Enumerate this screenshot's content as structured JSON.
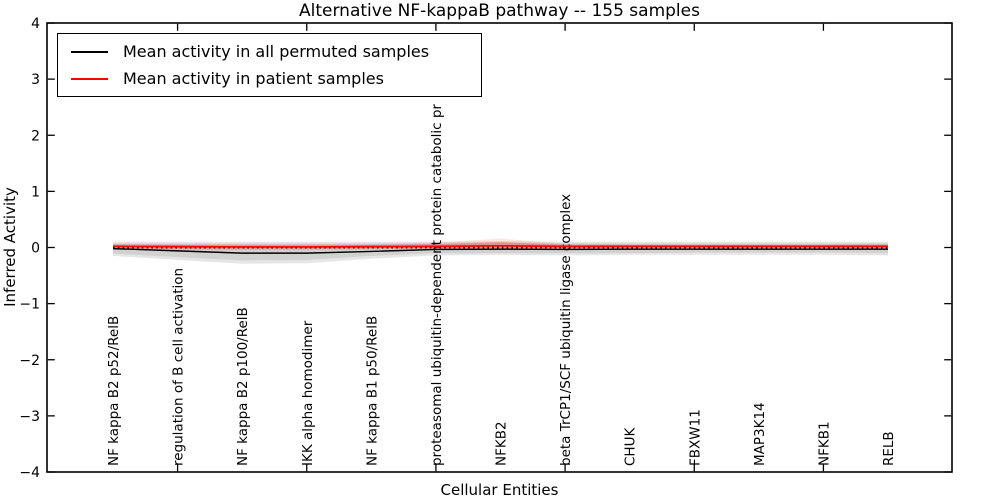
{
  "chart_data": {
    "type": "line",
    "title": "Alternative NF-kappaB pathway -- 155 samples",
    "xlabel": "Cellular Entities",
    "ylabel": "Inferred Activity",
    "ylim": [
      -4,
      4
    ],
    "yticks": [
      4,
      3,
      2,
      1,
      0,
      -1,
      -2,
      -3,
      -4
    ],
    "ytick_labels": [
      "4",
      "3",
      "2",
      "1",
      "0",
      "−1",
      "−2",
      "−3",
      "−4"
    ],
    "grid": false,
    "background_color": "#ffffff",
    "axis_color": "#000000",
    "categories": [
      "NF kappa B2 p52/RelB",
      "regulation of B cell activation",
      "NF kappa B2 p100/RelB",
      "IKK alpha homodimer",
      "NF kappa B1 p50/RelB",
      "proteasomal ubiquitin-dependent protein catabolic pr",
      "NFKB2",
      "beta TrCP1/SCF ubiquitin ligase complex",
      "CHUK",
      "FBXW11",
      "MAP3K14",
      "NFKB1",
      "RELB"
    ],
    "series": [
      {
        "name": "Mean activity in all permuted samples",
        "color": "#000000",
        "width": 1.4,
        "values": [
          -0.02,
          -0.06,
          -0.1,
          -0.1,
          -0.07,
          -0.035,
          -0.03,
          -0.035,
          -0.03,
          -0.03,
          -0.03,
          -0.03,
          -0.03
        ]
      },
      {
        "name": "Mean activity in patient samples",
        "color": "#ff0000",
        "width": 1.7,
        "values": [
          0.02,
          0.015,
          0.01,
          0.01,
          0.015,
          0.02,
          0.03,
          0.02,
          0.02,
          0.02,
          0.02,
          0.02,
          0.02
        ]
      }
    ],
    "bands": [
      {
        "name": "permuted-spread-outer",
        "color": "#999999",
        "opacity": 0.25,
        "upper": [
          0.1,
          0.1,
          0.1,
          0.1,
          0.1,
          0.1,
          0.11,
          0.1,
          0.1,
          0.1,
          0.1,
          0.1,
          0.1
        ],
        "lower": [
          -0.15,
          -0.22,
          -0.29,
          -0.28,
          -0.2,
          -0.14,
          -0.13,
          -0.14,
          -0.13,
          -0.13,
          -0.13,
          -0.13,
          -0.14
        ]
      },
      {
        "name": "permuted-spread-inner",
        "color": "#999999",
        "opacity": 0.25,
        "upper": [
          0.07,
          0.07,
          0.07,
          0.07,
          0.07,
          0.07,
          0.08,
          0.07,
          0.07,
          0.07,
          0.07,
          0.07,
          0.07
        ],
        "lower": [
          -0.11,
          -0.17,
          -0.23,
          -0.22,
          -0.15,
          -0.1,
          -0.1,
          -0.1,
          -0.1,
          -0.09,
          -0.09,
          -0.09,
          -0.1
        ]
      },
      {
        "name": "patient-spread-outer",
        "color": "#ff0000",
        "opacity": 0.1,
        "upper": [
          0.07,
          0.065,
          0.06,
          0.06,
          0.065,
          0.09,
          0.16,
          0.07,
          0.065,
          0.065,
          0.065,
          0.065,
          0.07
        ],
        "lower": [
          -0.04,
          -0.05,
          -0.05,
          -0.05,
          -0.04,
          -0.04,
          -0.05,
          -0.04,
          -0.03,
          -0.03,
          -0.03,
          -0.03,
          -0.04
        ]
      },
      {
        "name": "patient-spread-inner",
        "color": "#ff0000",
        "opacity": 0.22,
        "upper": [
          0.05,
          0.045,
          0.04,
          0.04,
          0.045,
          0.06,
          0.1,
          0.05,
          0.045,
          0.045,
          0.045,
          0.045,
          0.05
        ],
        "lower": [
          -0.02,
          -0.03,
          -0.03,
          -0.03,
          -0.02,
          -0.02,
          -0.03,
          -0.02,
          -0.015,
          -0.015,
          -0.015,
          -0.015,
          -0.02
        ]
      }
    ],
    "zero_line": {
      "value": 0,
      "style": "dotted",
      "color": "#000000"
    },
    "legend": {
      "position": "upper left",
      "entries": [
        {
          "label": "Mean activity in all permuted samples",
          "color": "#000000"
        },
        {
          "label": "Mean activity in patient samples",
          "color": "#ff0000"
        }
      ]
    }
  }
}
